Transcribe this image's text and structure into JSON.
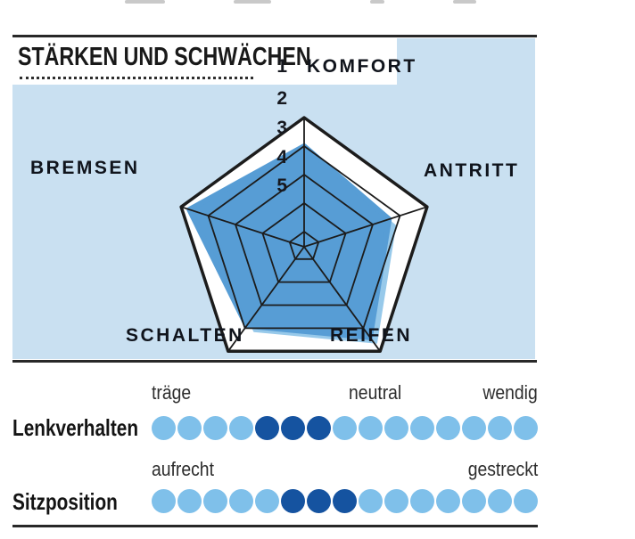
{
  "header": {
    "title": "STÄRKEN UND SCHWÄCHEN"
  },
  "chart_data": {
    "type": "radar",
    "title": "STÄRKEN UND SCHWÄCHEN",
    "axes": [
      "KOMFORT",
      "ANTRITT",
      "REIFEN",
      "SCHALTEN",
      "BREMSEN"
    ],
    "values": [
      2.0,
      2.4,
      1.6,
      2.1,
      1.3
    ],
    "scale_ticks": [
      "1",
      "2",
      "3",
      "4",
      "5"
    ],
    "scale_note": "1 = outer ring (best), 5 = innermost ring",
    "rings": 5,
    "grid": "pentagon",
    "colors": {
      "fill": "#579dd5",
      "fill_shadow": "#97c9ea",
      "grid_line": "#1c1c1c",
      "panel_bg": "#c9e0f1"
    }
  },
  "scales": {
    "dot_colors": {
      "light": "#7fc0ea",
      "dark": "#1553a0"
    },
    "rows": [
      {
        "label": "Lenkverhalten",
        "left_label": "träge",
        "mid_label": "neutral",
        "right_label": "wendig",
        "dots": [
          "light",
          "light",
          "light",
          "light",
          "dark",
          "dark",
          "dark",
          "light",
          "light",
          "light",
          "light",
          "light",
          "light",
          "light",
          "light"
        ]
      },
      {
        "label": "Sitzposition",
        "left_label": "aufrecht",
        "mid_label": "",
        "right_label": "gestreckt",
        "dots": [
          "light",
          "light",
          "light",
          "light",
          "light",
          "dark",
          "dark",
          "dark",
          "light",
          "light",
          "light",
          "light",
          "light",
          "light",
          "light"
        ]
      }
    ]
  }
}
